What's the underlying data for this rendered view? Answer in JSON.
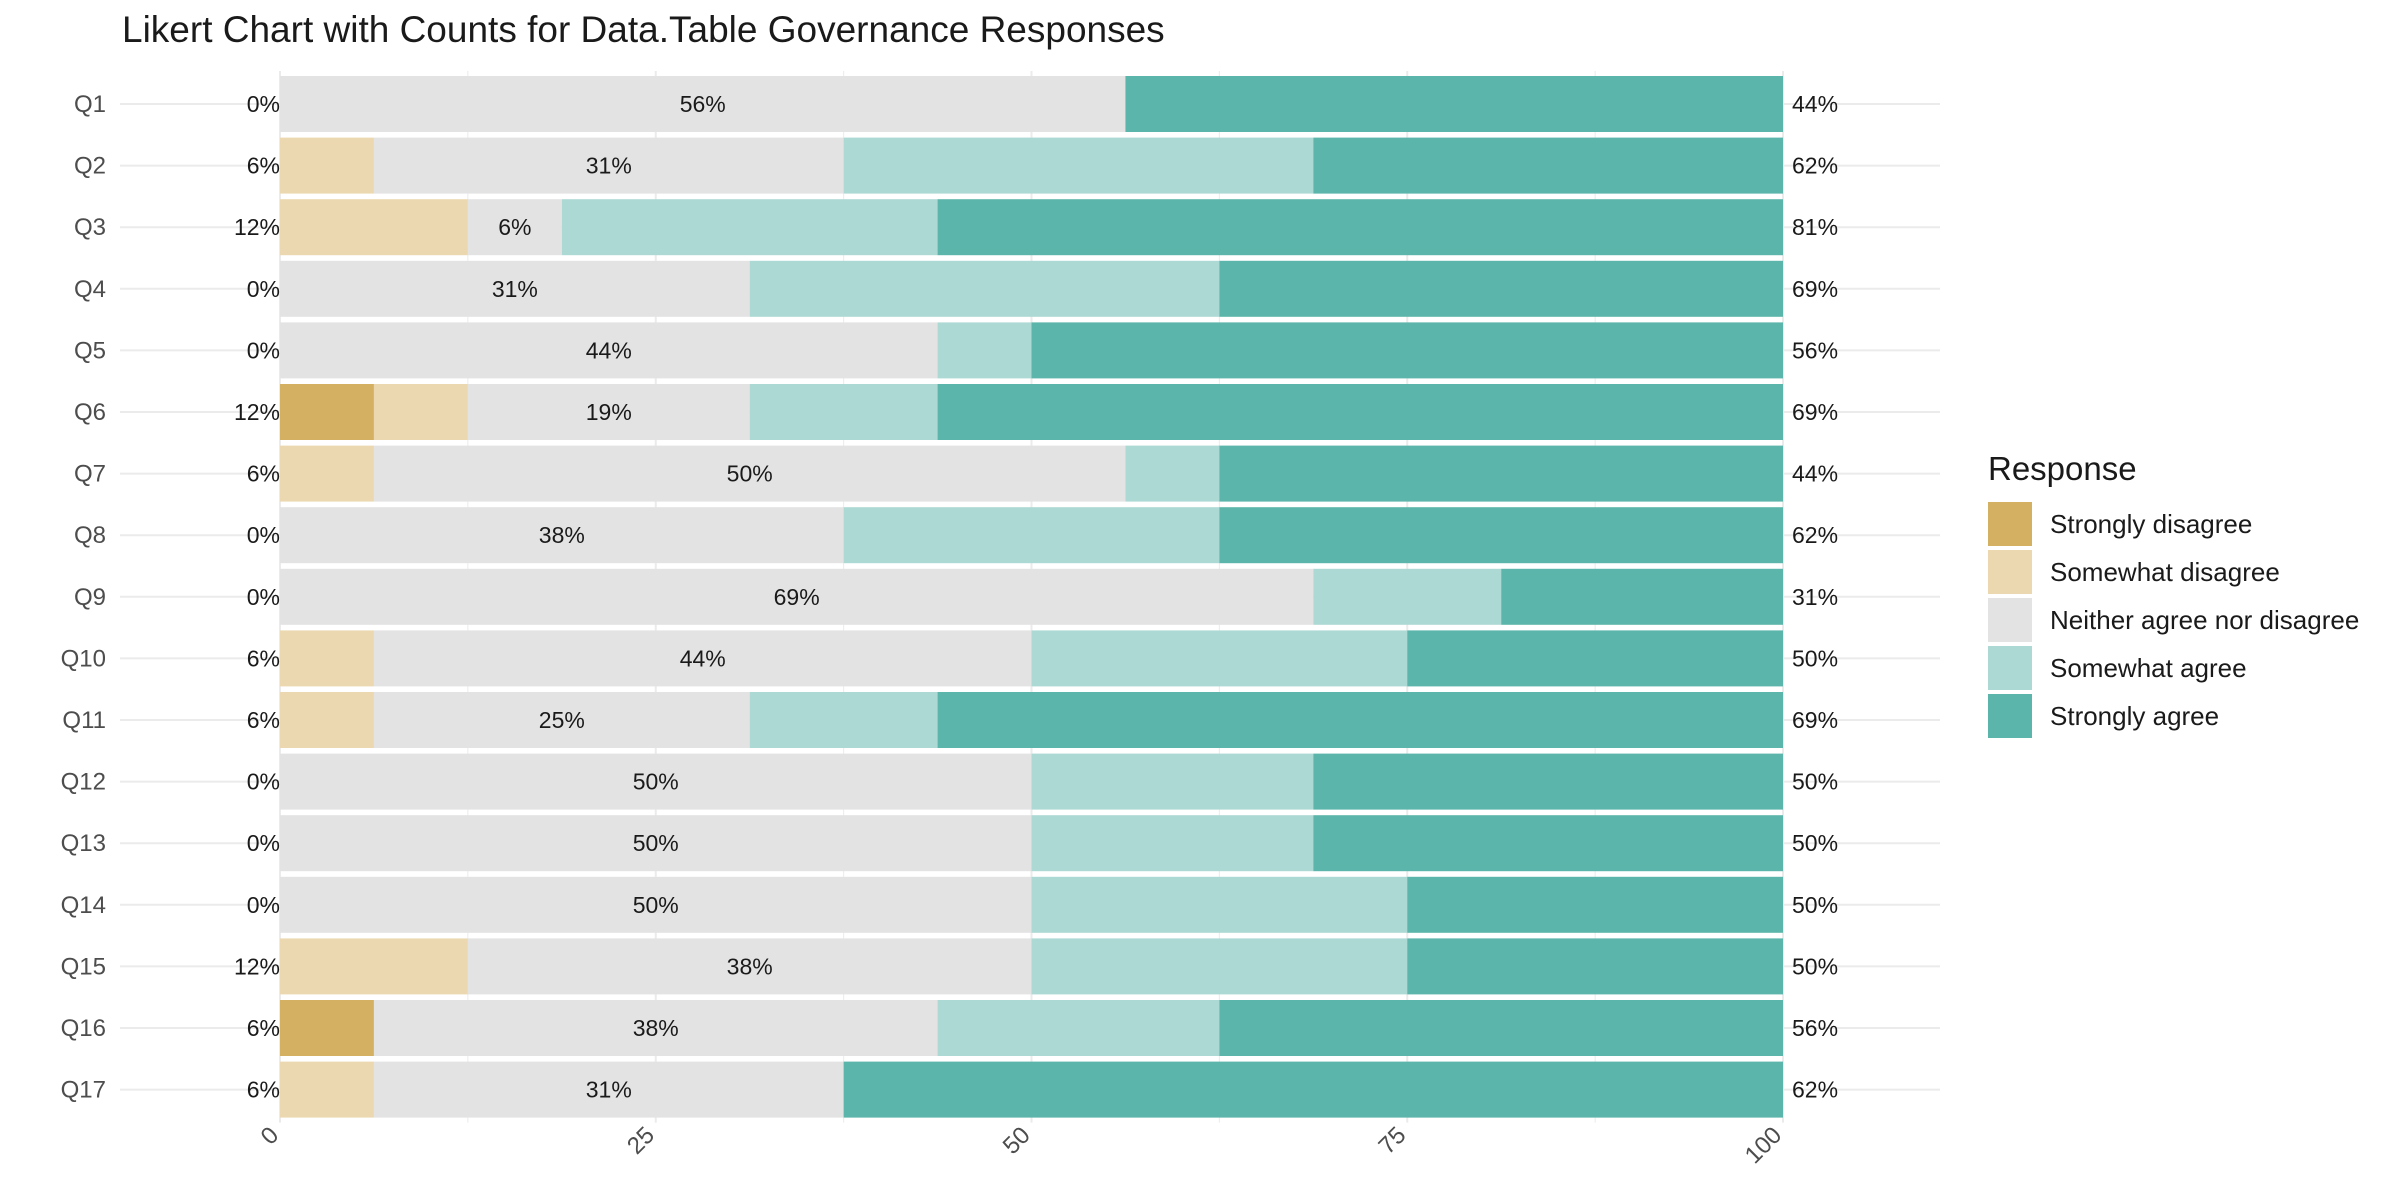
{
  "chart_data": {
    "type": "bar",
    "stacked": true,
    "orientation": "horizontal",
    "title": "Likert Chart with Counts for Data.Table Governance Responses",
    "xlim": [
      0,
      100
    ],
    "x_ticks": [
      "0",
      "25",
      "50",
      "75",
      "100"
    ],
    "grid": true,
    "legend_position": "right",
    "legend_title": "Response",
    "categories": [
      "Q1",
      "Q2",
      "Q3",
      "Q4",
      "Q5",
      "Q6",
      "Q7",
      "Q8",
      "Q9",
      "Q10",
      "Q11",
      "Q12",
      "Q13",
      "Q14",
      "Q15",
      "Q16",
      "Q17"
    ],
    "series": [
      {
        "name": "Strongly disagree",
        "color": "#D4B062",
        "values": [
          0,
          0,
          0,
          0,
          0,
          6.25,
          0,
          0,
          0,
          0,
          0,
          0,
          0,
          0,
          0,
          6.25,
          0
        ]
      },
      {
        "name": "Somewhat disagree",
        "color": "#EBD8B0",
        "values": [
          0,
          6.25,
          12.5,
          0,
          0,
          6.25,
          6.25,
          0,
          0,
          6.25,
          6.25,
          0,
          0,
          0,
          12.5,
          0,
          6.25
        ]
      },
      {
        "name": "Neither agree nor disagree",
        "color": "#E3E3E3",
        "values": [
          56.25,
          31.25,
          6.25,
          31.25,
          43.75,
          18.75,
          50,
          37.5,
          68.75,
          43.75,
          25,
          50,
          50,
          50,
          37.5,
          37.5,
          31.25
        ]
      },
      {
        "name": "Somewhat agree",
        "color": "#ADD9D5",
        "values": [
          0,
          31.25,
          25,
          31.25,
          6.25,
          12.5,
          6.25,
          25,
          12.5,
          25,
          12.5,
          18.75,
          18.75,
          25,
          25,
          18.75,
          0
        ]
      },
      {
        "name": "Strongly agree",
        "color": "#5BB5AA",
        "values": [
          43.75,
          31.25,
          56.25,
          37.5,
          50,
          56.25,
          37.5,
          37.5,
          18.75,
          25,
          56.25,
          31.25,
          31.25,
          25,
          25,
          37.5,
          62.5
        ]
      }
    ],
    "labels": {
      "left": [
        "0%",
        "6%",
        "12%",
        "0%",
        "0%",
        "12%",
        "6%",
        "0%",
        "0%",
        "6%",
        "6%",
        "0%",
        "0%",
        "0%",
        "12%",
        "6%",
        "6%"
      ],
      "middle": [
        "56%",
        "31%",
        "6%",
        "31%",
        "44%",
        "19%",
        "50%",
        "38%",
        "69%",
        "44%",
        "25%",
        "50%",
        "50%",
        "50%",
        "38%",
        "38%",
        "31%"
      ],
      "right": [
        "44%",
        "62%",
        "81%",
        "69%",
        "56%",
        "69%",
        "44%",
        "62%",
        "31%",
        "50%",
        "69%",
        "50%",
        "50%",
        "50%",
        "50%",
        "56%",
        "62%"
      ]
    }
  }
}
